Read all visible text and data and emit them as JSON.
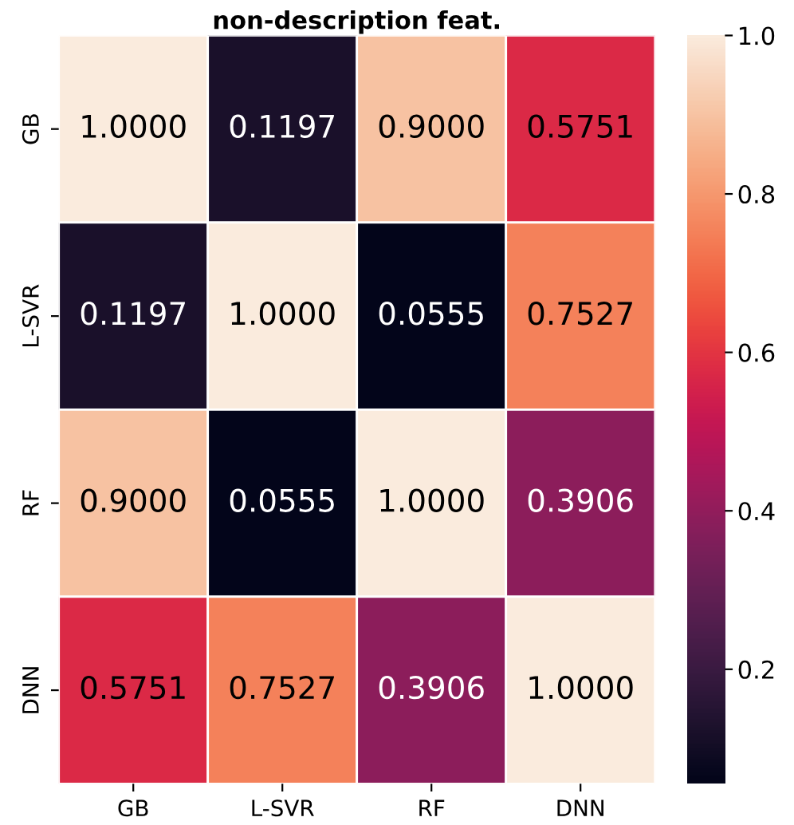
{
  "chart_data": {
    "type": "heatmap",
    "title": "non-description feat.",
    "categories": [
      "GB",
      "L-SVR",
      "RF",
      "DNN"
    ],
    "y_categories": [
      "GB",
      "L-SVR",
      "RF",
      "DNN"
    ],
    "cells": [
      [
        1.0,
        0.1197,
        0.9,
        0.5751
      ],
      [
        0.1197,
        1.0,
        0.0555,
        0.7527
      ],
      [
        0.9,
        0.0555,
        1.0,
        0.3906
      ],
      [
        0.5751,
        0.7527,
        0.3906,
        1.0
      ]
    ],
    "cell_labels": [
      [
        "1.0000",
        "0.1197",
        "0.9000",
        "0.5751"
      ],
      [
        "0.1197",
        "1.0000",
        "0.0555",
        "0.7527"
      ],
      [
        "0.9000",
        "0.0555",
        "1.0000",
        "0.3906"
      ],
      [
        "0.5751",
        "0.7527",
        "0.3906",
        "1.0000"
      ]
    ],
    "clim": [
      0.0555,
      1.0
    ],
    "cticks": [
      0.2,
      0.4,
      0.6,
      0.8,
      {
        "value": 1,
        "label": "1.0"
      }
    ]
  }
}
